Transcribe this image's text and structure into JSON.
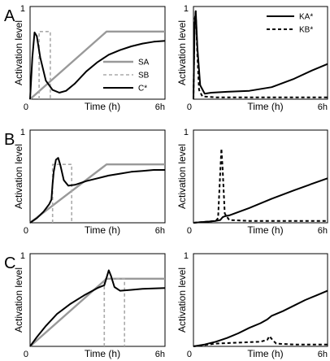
{
  "chart_data": [
    {
      "panel": "A",
      "position": "left",
      "type": "line",
      "xlabel": "Time (h)",
      "ylabel": "Activation level",
      "x_tick_labels": [
        "0",
        "6h"
      ],
      "y_tick_labels": [
        "0",
        "1"
      ],
      "xlim": [
        0,
        6
      ],
      "ylim": [
        0,
        1
      ],
      "legend": {
        "placement": "bottom-right",
        "entries": [
          "SA",
          "SB",
          "C*"
        ]
      },
      "series": [
        {
          "name": "SA",
          "color": "#999999",
          "dash": "solid",
          "width": 2.4,
          "points": [
            [
              0,
              0
            ],
            [
              3.4,
              0.73
            ],
            [
              6,
              0.73
            ]
          ]
        },
        {
          "name": "SB",
          "color": "#aaaaaa",
          "dash": "dashed",
          "width": 1.6,
          "points": [
            [
              0.4,
              0
            ],
            [
              0.4,
              0.73
            ],
            [
              0.9,
              0.73
            ],
            [
              0.9,
              0
            ]
          ]
        },
        {
          "name": "C*",
          "color": "#000000",
          "dash": "solid",
          "width": 2.0,
          "points": [
            [
              0,
              0
            ],
            [
              0.1,
              0.45
            ],
            [
              0.2,
              0.72
            ],
            [
              0.3,
              0.68
            ],
            [
              0.45,
              0.45
            ],
            [
              0.7,
              0.2
            ],
            [
              1.0,
              0.1
            ],
            [
              1.3,
              0.07
            ],
            [
              1.6,
              0.09
            ],
            [
              2.0,
              0.17
            ],
            [
              2.5,
              0.3
            ],
            [
              3.0,
              0.4
            ],
            [
              3.5,
              0.48
            ],
            [
              4.0,
              0.53
            ],
            [
              4.5,
              0.57
            ],
            [
              5.0,
              0.6
            ],
            [
              5.5,
              0.62
            ],
            [
              6.0,
              0.63
            ]
          ]
        }
      ]
    },
    {
      "panel": "A",
      "position": "right",
      "type": "line",
      "xlabel": "Time (h)",
      "ylabel": "Activation level",
      "x_tick_labels": [
        "0",
        "6h"
      ],
      "y_tick_labels": [
        "0",
        "1"
      ],
      "xlim": [
        0,
        6
      ],
      "ylim": [
        0,
        1
      ],
      "legend": {
        "placement": "top-right",
        "entries": [
          "KA*",
          "KB*"
        ]
      },
      "series": [
        {
          "name": "KA*",
          "color": "#000000",
          "dash": "solid",
          "width": 2.0,
          "points": [
            [
              0,
              0
            ],
            [
              0.05,
              0.8
            ],
            [
              0.1,
              0.95
            ],
            [
              0.18,
              0.55
            ],
            [
              0.3,
              0.15
            ],
            [
              0.5,
              0.06
            ],
            [
              0.8,
              0.07
            ],
            [
              1.5,
              0.08
            ],
            [
              2.5,
              0.09
            ],
            [
              3.5,
              0.13
            ],
            [
              4.5,
              0.22
            ],
            [
              5.3,
              0.31
            ],
            [
              6.0,
              0.38
            ]
          ]
        },
        {
          "name": "KB*",
          "color": "#000000",
          "dash": "dashed",
          "width": 2.0,
          "points": [
            [
              0,
              0
            ],
            [
              0.05,
              0.85
            ],
            [
              0.1,
              0.95
            ],
            [
              0.17,
              0.5
            ],
            [
              0.25,
              0.1
            ],
            [
              0.4,
              0.03
            ],
            [
              1.0,
              0.02
            ],
            [
              6.0,
              0.02
            ]
          ]
        }
      ]
    },
    {
      "panel": "B",
      "position": "left",
      "type": "line",
      "xlabel": "Time (h)",
      "ylabel": "Activation level",
      "x_tick_labels": [
        "0",
        "6h"
      ],
      "y_tick_labels": [
        "0",
        "1"
      ],
      "xlim": [
        0,
        6
      ],
      "ylim": [
        0,
        1
      ],
      "series": [
        {
          "name": "SA",
          "color": "#999999",
          "dash": "solid",
          "width": 2.4,
          "points": [
            [
              0,
              0
            ],
            [
              3.4,
              0.63
            ],
            [
              6,
              0.63
            ]
          ]
        },
        {
          "name": "SB",
          "color": "#aaaaaa",
          "dash": "dashed",
          "width": 1.6,
          "points": [
            [
              1.0,
              0
            ],
            [
              1.0,
              0.63
            ],
            [
              1.85,
              0.63
            ],
            [
              1.85,
              0
            ]
          ]
        },
        {
          "name": "C*",
          "color": "#000000",
          "dash": "solid",
          "width": 2.0,
          "points": [
            [
              0,
              0
            ],
            [
              0.3,
              0.05
            ],
            [
              0.6,
              0.12
            ],
            [
              0.85,
              0.2
            ],
            [
              0.95,
              0.25
            ],
            [
              1.0,
              0.42
            ],
            [
              1.05,
              0.55
            ],
            [
              1.15,
              0.68
            ],
            [
              1.25,
              0.7
            ],
            [
              1.35,
              0.62
            ],
            [
              1.5,
              0.46
            ],
            [
              1.7,
              0.4
            ],
            [
              2.0,
              0.41
            ],
            [
              2.5,
              0.45
            ],
            [
              3.0,
              0.48
            ],
            [
              3.5,
              0.51
            ],
            [
              4.0,
              0.53
            ],
            [
              4.5,
              0.55
            ],
            [
              5.0,
              0.56
            ],
            [
              5.5,
              0.57
            ],
            [
              6.0,
              0.57
            ]
          ]
        }
      ]
    },
    {
      "panel": "B",
      "position": "right",
      "type": "line",
      "xlabel": "Time (h)",
      "ylabel": "Activation level",
      "x_tick_labels": [
        "0",
        "6h"
      ],
      "y_tick_labels": [
        "0",
        "1"
      ],
      "xlim": [
        0,
        6
      ],
      "ylim": [
        0,
        1
      ],
      "series": [
        {
          "name": "KA*",
          "color": "#000000",
          "dash": "solid",
          "width": 2.0,
          "points": [
            [
              0,
              0
            ],
            [
              0.5,
              0.01
            ],
            [
              1.0,
              0.02
            ],
            [
              1.2,
              0.03
            ],
            [
              1.3,
              0.06
            ],
            [
              1.4,
              0.07
            ],
            [
              1.6,
              0.08
            ],
            [
              2.5,
              0.16
            ],
            [
              3.5,
              0.26
            ],
            [
              4.5,
              0.35
            ],
            [
              5.3,
              0.42
            ],
            [
              6.0,
              0.48
            ]
          ]
        },
        {
          "name": "KB*",
          "color": "#000000",
          "dash": "dashed",
          "width": 2.0,
          "points": [
            [
              0,
              0
            ],
            [
              1.0,
              0.02
            ],
            [
              1.1,
              0.05
            ],
            [
              1.2,
              0.55
            ],
            [
              1.25,
              0.8
            ],
            [
              1.3,
              0.6
            ],
            [
              1.4,
              0.1
            ],
            [
              1.6,
              0.03
            ],
            [
              2.5,
              0.02
            ],
            [
              6.0,
              0.02
            ]
          ]
        }
      ]
    },
    {
      "panel": "C",
      "position": "left",
      "type": "line",
      "xlabel": "Time (h)",
      "ylabel": "Activation level",
      "x_tick_labels": [
        "0",
        "6h"
      ],
      "y_tick_labels": [
        "0",
        "1"
      ],
      "xlim": [
        0,
        6
      ],
      "ylim": [
        0,
        1
      ],
      "series": [
        {
          "name": "SA",
          "color": "#999999",
          "dash": "solid",
          "width": 2.4,
          "points": [
            [
              0,
              0
            ],
            [
              3.4,
              0.73
            ],
            [
              6,
              0.73
            ]
          ]
        },
        {
          "name": "SB",
          "color": "#aaaaaa",
          "dash": "dashed",
          "width": 1.6,
          "points": [
            [
              3.3,
              0
            ],
            [
              3.3,
              0.73
            ],
            [
              4.2,
              0.73
            ],
            [
              4.2,
              0
            ]
          ]
        },
        {
          "name": "C*",
          "color": "#000000",
          "dash": "solid",
          "width": 2.0,
          "points": [
            [
              0,
              0
            ],
            [
              0.3,
              0.1
            ],
            [
              0.7,
              0.22
            ],
            [
              1.2,
              0.35
            ],
            [
              1.8,
              0.46
            ],
            [
              2.4,
              0.55
            ],
            [
              3.0,
              0.63
            ],
            [
              3.3,
              0.66
            ],
            [
              3.4,
              0.74
            ],
            [
              3.5,
              0.82
            ],
            [
              3.6,
              0.76
            ],
            [
              3.75,
              0.64
            ],
            [
              4.0,
              0.6
            ],
            [
              4.5,
              0.61
            ],
            [
              5.0,
              0.62
            ],
            [
              6.0,
              0.63
            ]
          ]
        }
      ]
    },
    {
      "panel": "C",
      "position": "right",
      "type": "line",
      "xlabel": "Time (h)",
      "ylabel": "Activation level",
      "x_tick_labels": [
        "0",
        "6h"
      ],
      "y_tick_labels": [
        "0",
        "1"
      ],
      "xlim": [
        0,
        6
      ],
      "ylim": [
        0,
        1
      ],
      "series": [
        {
          "name": "KA*",
          "color": "#000000",
          "dash": "solid",
          "width": 2.0,
          "points": [
            [
              0,
              0
            ],
            [
              0.5,
              0.02
            ],
            [
              1.0,
              0.05
            ],
            [
              1.5,
              0.09
            ],
            [
              2.0,
              0.14
            ],
            [
              2.5,
              0.2
            ],
            [
              3.0,
              0.25
            ],
            [
              3.3,
              0.29
            ],
            [
              3.5,
              0.33
            ],
            [
              4.0,
              0.38
            ],
            [
              4.5,
              0.44
            ],
            [
              5.0,
              0.5
            ],
            [
              5.5,
              0.55
            ],
            [
              6.0,
              0.6
            ]
          ]
        },
        {
          "name": "KB*",
          "color": "#000000",
          "dash": "dashed",
          "width": 2.0,
          "points": [
            [
              0,
              0
            ],
            [
              1.0,
              0.03
            ],
            [
              2.0,
              0.04
            ],
            [
              3.0,
              0.05
            ],
            [
              3.3,
              0.07
            ],
            [
              3.4,
              0.11
            ],
            [
              3.5,
              0.08
            ],
            [
              3.7,
              0.03
            ],
            [
              4.5,
              0.02
            ],
            [
              6.0,
              0.02
            ]
          ]
        }
      ]
    }
  ],
  "panel_letters": [
    "A",
    "B",
    "C"
  ]
}
